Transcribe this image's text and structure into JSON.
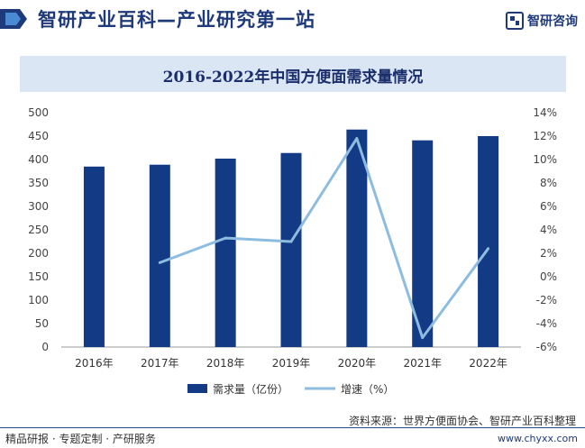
{
  "header": {
    "title": "智研产业百科—产业研究第一站",
    "brand": "智研咨询"
  },
  "chart_data": {
    "type": "bar",
    "title": "2016-2022年中国方便面需求量情况",
    "categories": [
      "2016年",
      "2017年",
      "2018年",
      "2019年",
      "2020年",
      "2021年",
      "2022年"
    ],
    "series": [
      {
        "name": "需求量（亿份）",
        "type": "bar",
        "axis": "left",
        "color": "#133a84",
        "values": [
          385,
          389,
          402,
          414,
          464,
          441,
          450
        ]
      },
      {
        "name": "增速（%）",
        "type": "line",
        "axis": "right",
        "color": "#8cbde0",
        "values": [
          null,
          1.2,
          3.3,
          3.0,
          11.8,
          -5.2,
          2.4
        ]
      }
    ],
    "ylim_left": [
      0,
      500
    ],
    "yticks_left": [
      "500",
      "450",
      "400",
      "350",
      "300",
      "250",
      "200",
      "150",
      "100",
      "50",
      "0"
    ],
    "ylim_right": [
      -6,
      14
    ],
    "yticks_right": [
      "14%",
      "12%",
      "10%",
      "8%",
      "6%",
      "4%",
      "2%",
      "0%",
      "-2%",
      "-4%",
      "-6%"
    ],
    "legend_position": "bottom-center",
    "grid": false
  },
  "footer": {
    "source": "资料来源：世界方便面协会、智研产业百科整理",
    "left": "精品研报 · 专题定制 · 产研服务",
    "url": "www.chyxx.com"
  }
}
